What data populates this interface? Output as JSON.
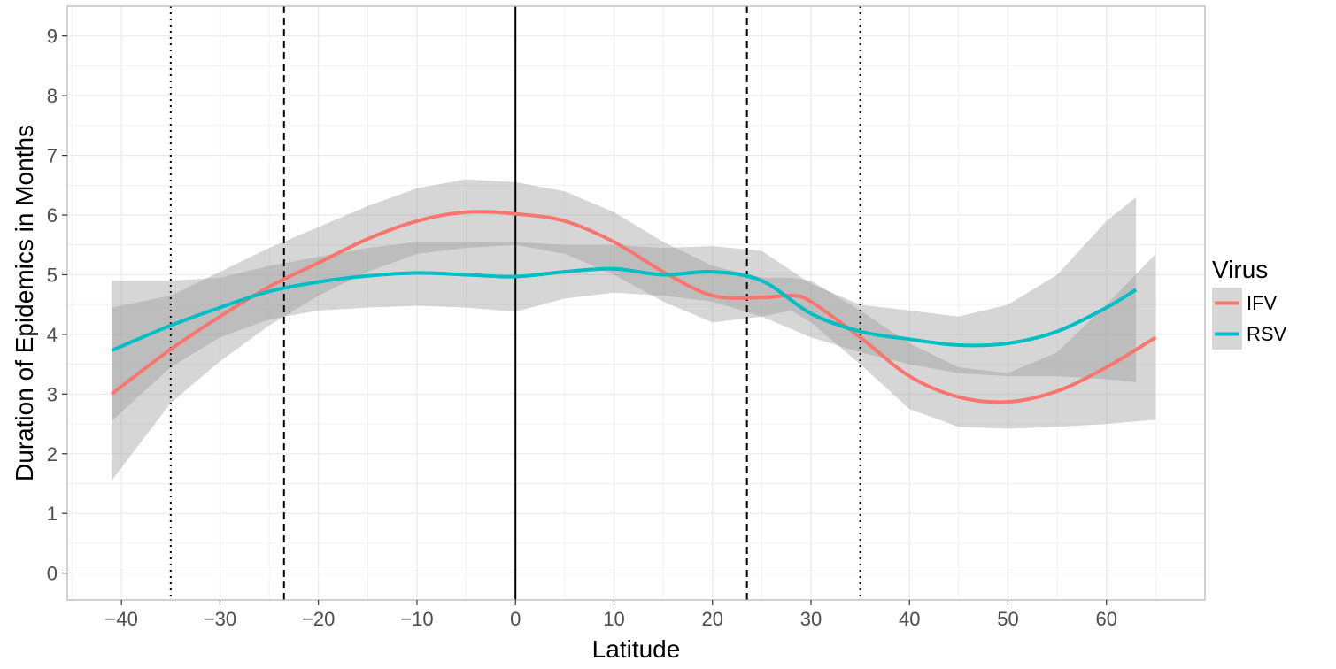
{
  "chart_data": {
    "type": "line",
    "title": "",
    "xlabel": "Latitude",
    "ylabel": "Duration of Epidemics in Months",
    "xlim": [
      -45.5,
      70
    ],
    "ylim": [
      -0.45,
      9.5
    ],
    "x_ticks": [
      -40,
      -30,
      -20,
      -10,
      0,
      10,
      20,
      30,
      40,
      50,
      60
    ],
    "x_tick_labels": [
      "−40",
      "−30",
      "−20",
      "−10",
      "0",
      "10",
      "20",
      "30",
      "40",
      "50",
      "60"
    ],
    "y_ticks": [
      0,
      1,
      2,
      3,
      4,
      5,
      6,
      7,
      8,
      9
    ],
    "y_tick_labels": [
      "0",
      "1",
      "2",
      "3",
      "4",
      "5",
      "6",
      "7",
      "8",
      "9"
    ],
    "grid": true,
    "legend": {
      "title": "Virus",
      "placement": "right",
      "entries": [
        "IFV",
        "RSV"
      ]
    },
    "reference_lines": [
      {
        "x": -35,
        "style": "dotted"
      },
      {
        "x": -23.5,
        "style": "dashed"
      },
      {
        "x": 0,
        "style": "solid"
      },
      {
        "x": 23.5,
        "style": "dashed"
      },
      {
        "x": 35,
        "style": "dotted"
      }
    ],
    "series": [
      {
        "name": "IFV",
        "color": "#F8766D",
        "x": [
          -41,
          -35,
          -30,
          -25,
          -20,
          -15,
          -10,
          -5,
          0,
          5,
          10,
          15,
          20,
          25,
          28,
          30,
          35,
          40,
          45,
          50,
          55,
          60,
          65
        ],
        "y": [
          3.0,
          3.75,
          4.3,
          4.8,
          5.2,
          5.6,
          5.9,
          6.05,
          6.02,
          5.9,
          5.55,
          5.05,
          4.65,
          4.62,
          4.65,
          4.55,
          3.95,
          3.3,
          2.95,
          2.87,
          3.05,
          3.45,
          3.95
        ],
        "ci_lower": [
          1.55,
          2.85,
          3.55,
          4.15,
          4.65,
          5.05,
          5.35,
          5.45,
          5.5,
          5.35,
          5.0,
          4.55,
          4.2,
          4.3,
          4.4,
          4.2,
          3.5,
          2.75,
          2.45,
          2.42,
          2.45,
          2.5,
          2.57
        ],
        "ci_upper": [
          4.45,
          4.65,
          5.05,
          5.45,
          5.8,
          6.15,
          6.45,
          6.6,
          6.55,
          6.4,
          6.05,
          5.55,
          5.15,
          4.95,
          4.95,
          4.9,
          4.4,
          3.85,
          3.45,
          3.35,
          3.7,
          4.5,
          5.35
        ]
      },
      {
        "name": "RSV",
        "color": "#00BFC4",
        "x": [
          -41,
          -35,
          -30,
          -25,
          -20,
          -15,
          -10,
          -5,
          0,
          5,
          10,
          15,
          20,
          25,
          30,
          35,
          40,
          45,
          50,
          55,
          60,
          63
        ],
        "y": [
          3.73,
          4.15,
          4.45,
          4.72,
          4.88,
          4.98,
          5.03,
          5.0,
          4.97,
          5.05,
          5.1,
          5.0,
          5.05,
          4.9,
          4.35,
          4.05,
          3.92,
          3.82,
          3.85,
          4.05,
          4.45,
          4.75
        ],
        "ci_lower": [
          2.55,
          3.45,
          3.95,
          4.25,
          4.4,
          4.45,
          4.48,
          4.45,
          4.38,
          4.6,
          4.7,
          4.65,
          4.55,
          4.3,
          3.95,
          3.7,
          3.5,
          3.35,
          3.3,
          3.3,
          3.25,
          3.2
        ],
        "ci_upper": [
          4.9,
          4.9,
          4.95,
          5.15,
          5.3,
          5.45,
          5.55,
          5.55,
          5.55,
          5.5,
          5.5,
          5.45,
          5.48,
          5.4,
          4.85,
          4.5,
          4.4,
          4.3,
          4.5,
          5.0,
          5.9,
          6.3
        ]
      }
    ]
  },
  "colors": {
    "background": "#ffffff",
    "grid": "#ebebeb",
    "panel_border": "#b3b3b3",
    "ribbon": "#999999"
  }
}
